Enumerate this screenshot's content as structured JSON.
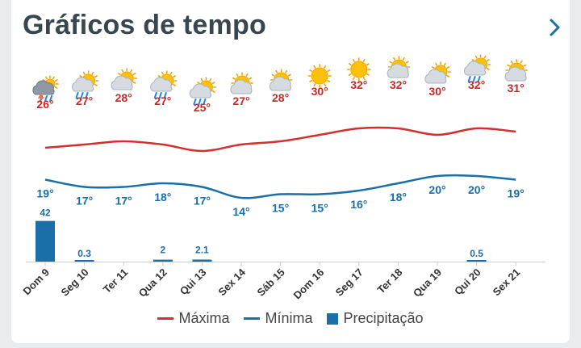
{
  "header": {
    "title": "Gráficos de tempo"
  },
  "legend": {
    "max_label": "Máxima",
    "min_label": "Mínima",
    "precip_label": "Precipitação"
  },
  "colors": {
    "max": "#d32f2f",
    "min": "#1a6fa8",
    "precip": "#1a6fa8",
    "label_max": "#c62828",
    "label_min": "#1a6fa8"
  },
  "chart_data": {
    "type": "line",
    "title": "Gráficos de tempo",
    "categories": [
      "Dom 9",
      "Seg 10",
      "Ter 11",
      "Qua 12",
      "Qui 13",
      "Sex 14",
      "Sáb 15",
      "Dom 16",
      "Seg 17",
      "Ter 18",
      "Qua 19",
      "Qui 20",
      "Sex 21"
    ],
    "icons": [
      "thunderstorm-icon",
      "rain-sun-icon",
      "cloud-sun-icon",
      "rain-sun-icon",
      "rain-sun-icon",
      "partly-sunny-icon",
      "partly-sunny-icon",
      "sun-icon",
      "sun-icon",
      "partly-sunny-icon",
      "cloud-sun-icon",
      "rain-sun-icon",
      "partly-sunny-icon"
    ],
    "series": [
      {
        "name": "Máxima",
        "values": [
          26,
          27,
          28,
          27,
          25,
          27,
          28,
          30,
          32,
          32,
          30,
          32,
          31
        ],
        "labels": [
          "26°",
          "27°",
          "28°",
          "27°",
          "25°",
          "27°",
          "28°",
          "30°",
          "32°",
          "32°",
          "30°",
          "32°",
          "31°"
        ]
      },
      {
        "name": "Mínima",
        "values": [
          19,
          17,
          17,
          18,
          17,
          14,
          15,
          15,
          16,
          18,
          20,
          20,
          19
        ],
        "labels": [
          "19°",
          "17°",
          "17°",
          "18°",
          "17°",
          "14°",
          "15°",
          "15°",
          "16°",
          "18°",
          "20°",
          "20°",
          "19°"
        ]
      },
      {
        "name": "Precipitação",
        "values": [
          42,
          0.3,
          0,
          2,
          2.1,
          0,
          0,
          0,
          0,
          0,
          0,
          0.5,
          0
        ],
        "labels": [
          "42",
          "0.3",
          "",
          "2",
          "2.1",
          "",
          "",
          "",
          "",
          "",
          "",
          "0.5",
          ""
        ]
      }
    ],
    "grid": false,
    "legend_position": "bottom"
  }
}
